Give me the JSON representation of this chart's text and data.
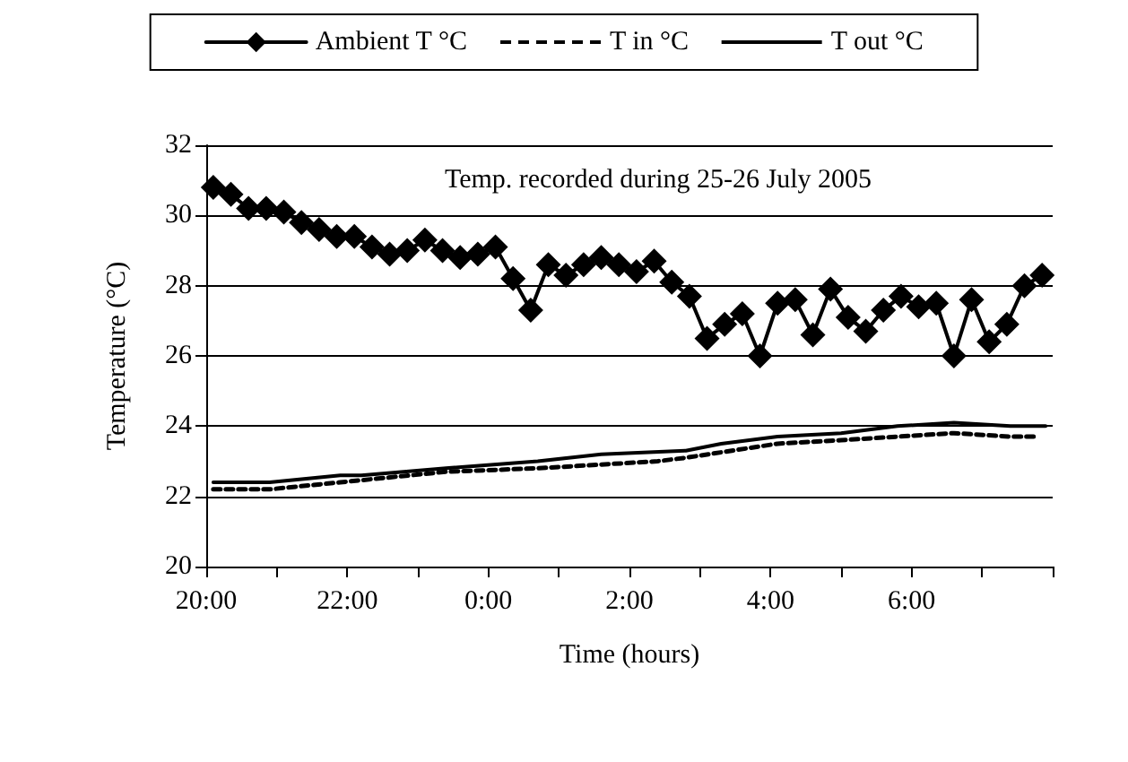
{
  "chart_data": {
    "type": "line",
    "xlabel": "Time (hours)",
    "ylabel": "Temperature (°C)",
    "annotations": [
      "Temp. recorded during 25-26 July 2005"
    ],
    "x": [
      "2005-07-25T20:06",
      "2005-07-25T20:21",
      "2005-07-25T20:36",
      "2005-07-25T20:51",
      "2005-07-25T21:06",
      "2005-07-25T21:21",
      "2005-07-25T21:36",
      "2005-07-25T21:51",
      "2005-07-25T22:06",
      "2005-07-25T22:21",
      "2005-07-25T22:36",
      "2005-07-25T22:51",
      "2005-07-25T23:06",
      "2005-07-25T23:21",
      "2005-07-25T23:36",
      "2005-07-25T23:51",
      "2005-07-26T00:06",
      "2005-07-26T00:21",
      "2005-07-26T00:36",
      "2005-07-26T00:51",
      "2005-07-26T01:06",
      "2005-07-26T01:21",
      "2005-07-26T01:36",
      "2005-07-26T01:51",
      "2005-07-26T02:06",
      "2005-07-26T02:21",
      "2005-07-26T02:36",
      "2005-07-26T02:51",
      "2005-07-26T03:06",
      "2005-07-26T03:21",
      "2005-07-26T03:36",
      "2005-07-26T03:51",
      "2005-07-26T04:06",
      "2005-07-26T04:21",
      "2005-07-26T04:36",
      "2005-07-26T04:51",
      "2005-07-26T05:06",
      "2005-07-26T05:21",
      "2005-07-26T05:36",
      "2005-07-26T05:51",
      "2005-07-26T06:06",
      "2005-07-26T06:21",
      "2005-07-26T06:36",
      "2005-07-26T06:51",
      "2005-07-26T07:06",
      "2005-07-26T07:21",
      "2005-07-26T07:36",
      "2005-07-26T07:51"
    ],
    "series": [
      {
        "name": "Ambient T °C",
        "color": "#000000",
        "marker": "diamond",
        "line_style": "solid",
        "values": [
          30.8,
          30.6,
          30.2,
          30.2,
          30.1,
          29.8,
          29.6,
          29.4,
          29.4,
          29.1,
          28.9,
          29.0,
          29.3,
          29.0,
          28.8,
          28.9,
          29.1,
          28.2,
          27.3,
          28.6,
          28.3,
          28.6,
          28.8,
          28.6,
          28.4,
          28.7,
          28.1,
          27.7,
          26.5,
          26.9,
          27.2,
          26.0,
          27.5,
          27.6,
          26.6,
          27.9,
          27.1,
          26.7,
          27.3,
          27.7,
          27.4,
          27.5,
          26.0,
          27.6,
          26.4,
          26.9,
          28.0,
          28.3
        ]
      },
      {
        "name": "T in °C",
        "color": "#000000",
        "marker": "none",
        "line_style": "dashed",
        "x": [
          "2005-07-25T20:06",
          "2005-07-25T20:54",
          "2005-07-25T21:54",
          "2005-07-25T23:24",
          "2005-07-26T00:42",
          "2005-07-26T02:24",
          "2005-07-26T02:48",
          "2005-07-26T04:06",
          "2005-07-26T05:00",
          "2005-07-26T05:48",
          "2005-07-26T06:36",
          "2005-07-26T07:24",
          "2005-07-26T07:48"
        ],
        "values": [
          22.2,
          22.2,
          22.4,
          22.7,
          22.8,
          23.0,
          23.1,
          23.5,
          23.6,
          23.7,
          23.8,
          23.7,
          23.7
        ]
      },
      {
        "name": "T out °C",
        "color": "#000000",
        "marker": "none",
        "line_style": "solid",
        "x": [
          "2005-07-25T20:06",
          "2005-07-25T20:54",
          "2005-07-25T21:54",
          "2005-07-25T22:12",
          "2005-07-25T23:24",
          "2005-07-26T00:42",
          "2005-07-26T01:36",
          "2005-07-26T02:48",
          "2005-07-26T03:18",
          "2005-07-26T04:06",
          "2005-07-26T05:00",
          "2005-07-26T05:48",
          "2005-07-26T06:36",
          "2005-07-26T07:24",
          "2005-07-26T07:54"
        ],
        "values": [
          22.4,
          22.4,
          22.6,
          22.6,
          22.8,
          23.0,
          23.2,
          23.3,
          23.5,
          23.7,
          23.8,
          24.0,
          24.1,
          24.0,
          24.0
        ]
      }
    ],
    "xlim": [
      "2005-07-25T20:00",
      "2005-07-26T08:00"
    ],
    "xticks": [
      {
        "value": "2005-07-25T20:00",
        "label": "20:00"
      },
      {
        "value": "2005-07-25T21:00",
        "label": null
      },
      {
        "value": "2005-07-25T22:00",
        "label": "22:00"
      },
      {
        "value": "2005-07-25T23:00",
        "label": null
      },
      {
        "value": "2005-07-26T00:00",
        "label": "0:00"
      },
      {
        "value": "2005-07-26T01:00",
        "label": null
      },
      {
        "value": "2005-07-26T02:00",
        "label": "2:00"
      },
      {
        "value": "2005-07-26T03:00",
        "label": null
      },
      {
        "value": "2005-07-26T04:00",
        "label": "4:00"
      },
      {
        "value": "2005-07-26T05:00",
        "label": null
      },
      {
        "value": "2005-07-26T06:00",
        "label": "6:00"
      },
      {
        "value": "2005-07-26T07:00",
        "label": null
      },
      {
        "value": "2005-07-26T08:00",
        "label": null
      }
    ],
    "ylim": [
      20,
      32
    ],
    "yticks": [
      20,
      22,
      24,
      26,
      28,
      30,
      32
    ],
    "grid": "y",
    "legend": "top"
  }
}
